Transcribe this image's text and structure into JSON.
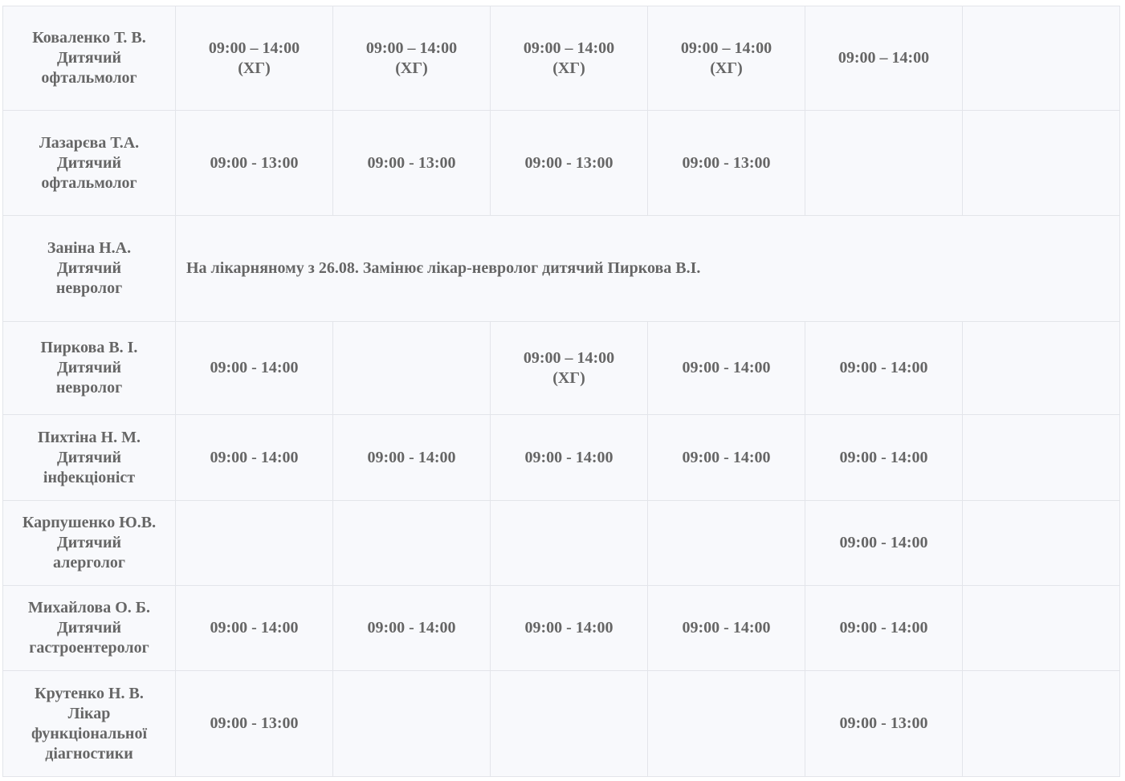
{
  "rows": [
    {
      "doctor": [
        "Коваленко Т. В.",
        "Дитячий",
        "офтальмолог"
      ],
      "cells": [
        [
          "09:00 – 14:00",
          "(ХГ)"
        ],
        [
          "09:00 – 14:00",
          "(ХГ)"
        ],
        [
          "09:00 – 14:00",
          "(ХГ)"
        ],
        [
          "09:00 – 14:00",
          "(ХГ)"
        ],
        [
          "09:00 – 14:00"
        ],
        []
      ]
    },
    {
      "doctor": [
        "Лазарєва Т.А.",
        "Дитячий",
        "офтальмолог"
      ],
      "cells": [
        [
          "09:00 - 13:00"
        ],
        [
          "09:00 - 13:00"
        ],
        [
          "09:00 - 13:00"
        ],
        [
          "09:00 - 13:00"
        ],
        [],
        []
      ]
    },
    {
      "doctor": [
        "Заніна Н.А.",
        "Дитячий",
        "невролог"
      ],
      "note": "На лікарняному з 26.08. Замінює лікар-невролог дитячий Пиркова В.І."
    },
    {
      "doctor": [
        "Пиркова В. І.",
        "Дитячий",
        "невролог"
      ],
      "cells": [
        [
          "09:00 - 14:00"
        ],
        [],
        [
          "09:00 – 14:00",
          "(ХГ)"
        ],
        [
          "09:00 - 14:00"
        ],
        [
          "09:00 - 14:00"
        ],
        []
      ]
    },
    {
      "doctor": [
        "Пихтіна Н. М.",
        "Дитячий",
        "інфекціоніст"
      ],
      "cells": [
        [
          "09:00 - 14:00"
        ],
        [
          "09:00 - 14:00"
        ],
        [
          "09:00 - 14:00"
        ],
        [
          "09:00 - 14:00"
        ],
        [
          "09:00 - 14:00"
        ],
        []
      ]
    },
    {
      "doctor": [
        "Карпушенко Ю.В.",
        "Дитячий",
        "алерголог"
      ],
      "cells": [
        [],
        [],
        [],
        [],
        [
          "09:00 - 14:00"
        ],
        []
      ]
    },
    {
      "doctor": [
        "Михайлова О. Б.",
        "Дитячий",
        "гастроентеролог"
      ],
      "cells": [
        [
          "09:00 - 14:00"
        ],
        [
          "09:00 - 14:00"
        ],
        [
          "09:00 - 14:00"
        ],
        [
          "09:00 - 14:00"
        ],
        [
          "09:00 - 14:00"
        ],
        []
      ]
    },
    {
      "doctor": [
        "Крутенко Н. В.",
        "Лікар",
        "функціональної",
        "діагностики"
      ],
      "cells": [
        [
          "09:00 - 13:00"
        ],
        [],
        [],
        [],
        [
          "09:00 - 13:00"
        ],
        []
      ]
    }
  ]
}
